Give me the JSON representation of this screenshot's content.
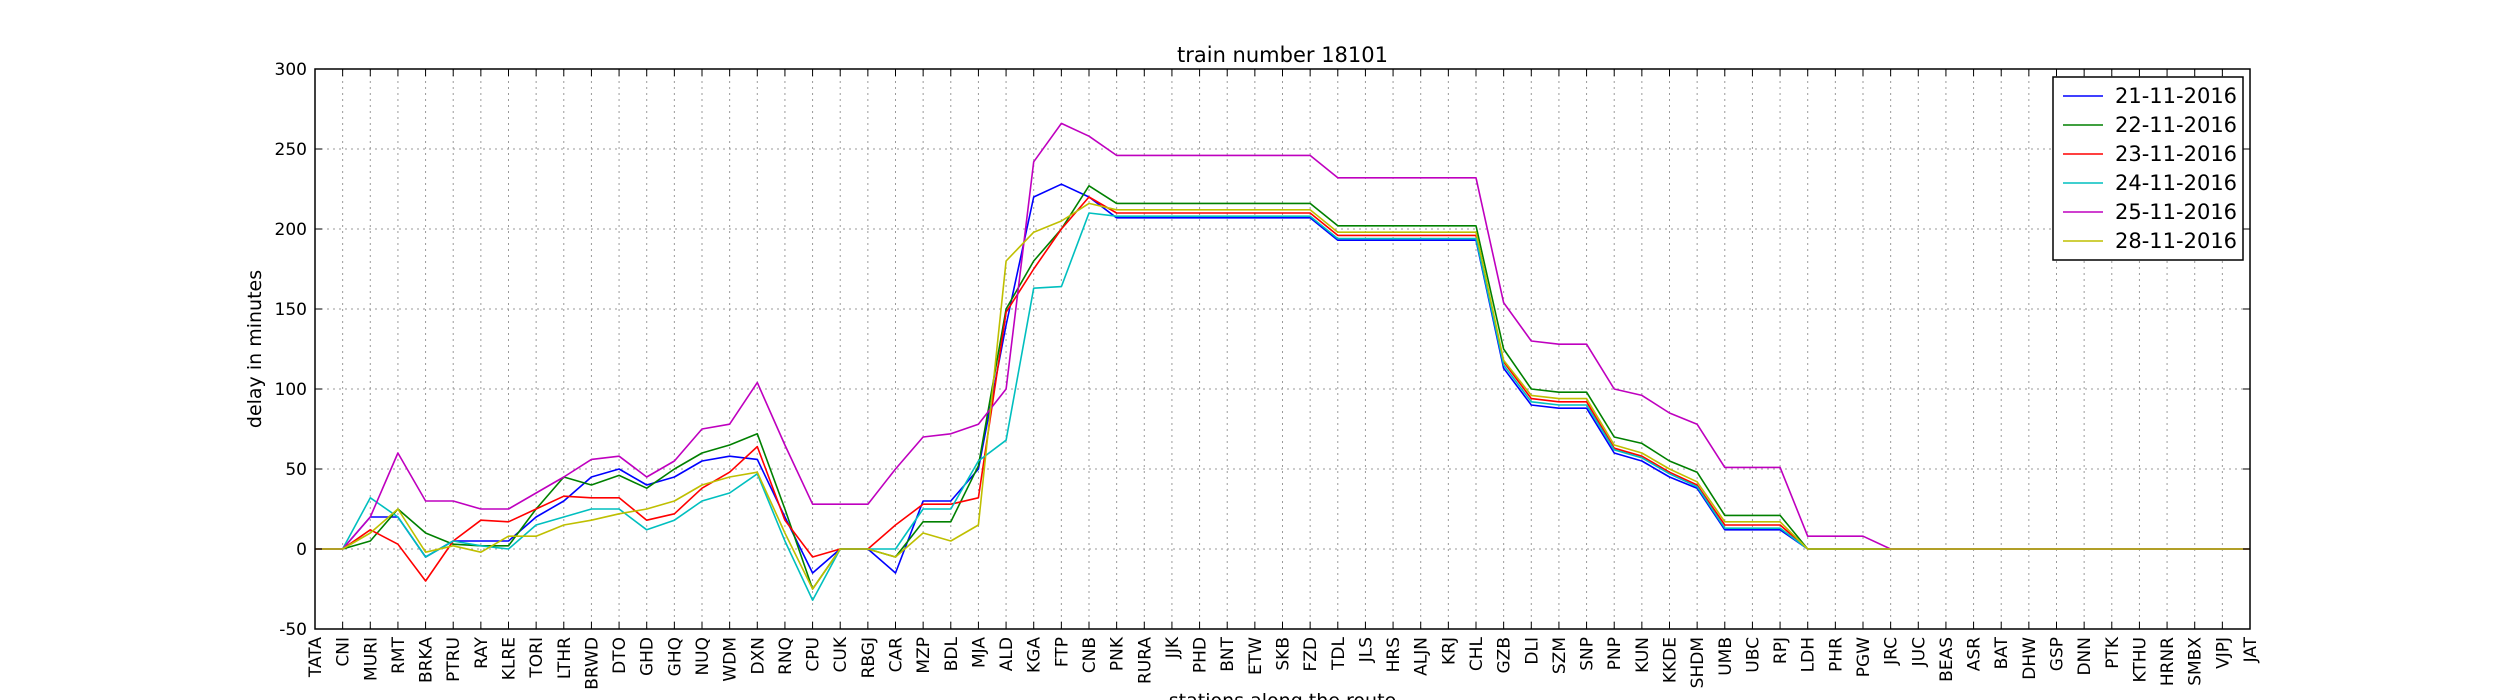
{
  "chart_data": {
    "type": "line",
    "title": "train number 18101",
    "xlabel": "stations along the route",
    "ylabel": "delay in minutes",
    "ylim": [
      -50,
      300
    ],
    "yticks": [
      -50,
      0,
      50,
      100,
      150,
      200,
      250,
      300
    ],
    "grid": true,
    "legend_position": "top-right",
    "categories": [
      "TATA",
      "CNI",
      "MURI",
      "RMT",
      "BRKA",
      "PTRU",
      "RAY",
      "KLRE",
      "TORI",
      "LTHR",
      "BRWD",
      "DTO",
      "GHD",
      "GHQ",
      "NUQ",
      "WDM",
      "DXN",
      "RNQ",
      "CPU",
      "CUK",
      "RBGJ",
      "CAR",
      "MZP",
      "BDL",
      "MJA",
      "ALD",
      "KGA",
      "FTP",
      "CNB",
      "PNK",
      "RURA",
      "JJK",
      "PHD",
      "BNT",
      "ETW",
      "SKB",
      "FZD",
      "TDL",
      "JLS",
      "HRS",
      "ALJN",
      "KRJ",
      "CHL",
      "GZB",
      "DLI",
      "SZM",
      "SNP",
      "PNP",
      "KUN",
      "KKDE",
      "SHDM",
      "UMB",
      "UBC",
      "RPJ",
      "LDH",
      "PHR",
      "PGW",
      "JRC",
      "JUC",
      "BEAS",
      "ASR",
      "BAT",
      "DHW",
      "GSP",
      "DNN",
      "PTK",
      "KTHU",
      "HRNR",
      "SMBX",
      "VJPJ",
      "JAT"
    ],
    "series": [
      {
        "name": "21-11-2016",
        "color": "#0000ff",
        "values": [
          0,
          0,
          20,
          20,
          -5,
          5,
          5,
          5,
          20,
          30,
          45,
          50,
          40,
          45,
          55,
          58,
          56,
          20,
          -15,
          0,
          0,
          -15,
          30,
          30,
          50,
          140,
          220,
          228,
          220,
          207,
          207,
          207,
          207,
          207,
          207,
          207,
          207,
          193,
          193,
          193,
          193,
          193,
          193,
          113,
          90,
          88,
          88,
          60,
          55,
          45,
          38,
          12,
          12,
          12,
          0,
          0,
          0,
          0,
          0,
          0,
          0,
          0,
          0,
          0,
          0,
          0,
          0,
          0,
          0,
          0,
          0
        ]
      },
      {
        "name": "22-11-2016",
        "color": "#008000",
        "values": [
          0,
          0,
          5,
          25,
          10,
          3,
          2,
          2,
          25,
          45,
          40,
          46,
          38,
          50,
          60,
          65,
          72,
          25,
          -25,
          0,
          0,
          -5,
          17,
          17,
          52,
          150,
          180,
          200,
          227,
          216,
          216,
          216,
          216,
          216,
          216,
          216,
          216,
          202,
          202,
          202,
          202,
          202,
          202,
          125,
          100,
          98,
          98,
          70,
          66,
          55,
          48,
          21,
          21,
          21,
          0,
          0,
          0,
          0,
          0,
          0,
          0,
          0,
          0,
          0,
          0,
          0,
          0,
          0,
          0,
          0,
          0
        ]
      },
      {
        "name": "23-11-2016",
        "color": "#ff0000",
        "values": [
          0,
          0,
          12,
          3,
          -20,
          5,
          18,
          17,
          25,
          33,
          32,
          32,
          18,
          22,
          38,
          48,
          64,
          18,
          -5,
          0,
          0,
          15,
          28,
          28,
          32,
          148,
          175,
          200,
          220,
          210,
          210,
          210,
          210,
          210,
          210,
          210,
          210,
          196,
          196,
          196,
          196,
          196,
          196,
          117,
          94,
          92,
          92,
          63,
          58,
          48,
          40,
          15,
          15,
          15,
          0,
          0,
          0,
          0,
          0,
          0,
          0,
          0,
          0,
          0,
          0,
          0,
          0,
          0,
          0,
          0,
          0
        ]
      },
      {
        "name": "24-11-2016",
        "color": "#00bfbf",
        "values": [
          0,
          0,
          32,
          20,
          -5,
          5,
          2,
          0,
          15,
          20,
          25,
          25,
          12,
          18,
          30,
          35,
          47,
          5,
          -32,
          0,
          0,
          0,
          25,
          25,
          55,
          68,
          163,
          164,
          210,
          208,
          208,
          208,
          208,
          208,
          208,
          208,
          208,
          194,
          194,
          194,
          194,
          194,
          194,
          115,
          92,
          90,
          90,
          62,
          57,
          47,
          39,
          13,
          13,
          13,
          0,
          0,
          0,
          0,
          0,
          0,
          0,
          0,
          0,
          0,
          0,
          0,
          0,
          0,
          0,
          0,
          0
        ]
      },
      {
        "name": "25-11-2016",
        "color": "#bf00bf",
        "values": [
          0,
          0,
          20,
          60,
          30,
          30,
          25,
          25,
          35,
          45,
          56,
          58,
          45,
          55,
          75,
          78,
          104,
          65,
          28,
          28,
          28,
          50,
          70,
          72,
          78,
          100,
          242,
          266,
          258,
          246,
          246,
          246,
          246,
          246,
          246,
          246,
          246,
          232,
          232,
          232,
          232,
          232,
          232,
          154,
          130,
          128,
          128,
          100,
          96,
          85,
          78,
          51,
          51,
          51,
          8,
          8,
          8,
          0,
          0,
          0,
          0,
          0,
          0,
          0,
          0,
          0,
          0,
          0,
          0,
          0,
          0
        ]
      },
      {
        "name": "28-11-2016",
        "color": "#bfbf00",
        "values": [
          0,
          0,
          10,
          25,
          -2,
          2,
          -2,
          8,
          8,
          15,
          18,
          22,
          25,
          30,
          40,
          45,
          48,
          10,
          -25,
          0,
          0,
          -5,
          10,
          5,
          15,
          180,
          198,
          205,
          216,
          212,
          212,
          212,
          212,
          212,
          212,
          212,
          212,
          198,
          198,
          198,
          198,
          198,
          198,
          118,
          96,
          94,
          94,
          65,
          60,
          50,
          42,
          17,
          17,
          17,
          0,
          0,
          0,
          0,
          0,
          0,
          0,
          0,
          0,
          0,
          0,
          0,
          0,
          0,
          0,
          0,
          0
        ]
      }
    ]
  }
}
